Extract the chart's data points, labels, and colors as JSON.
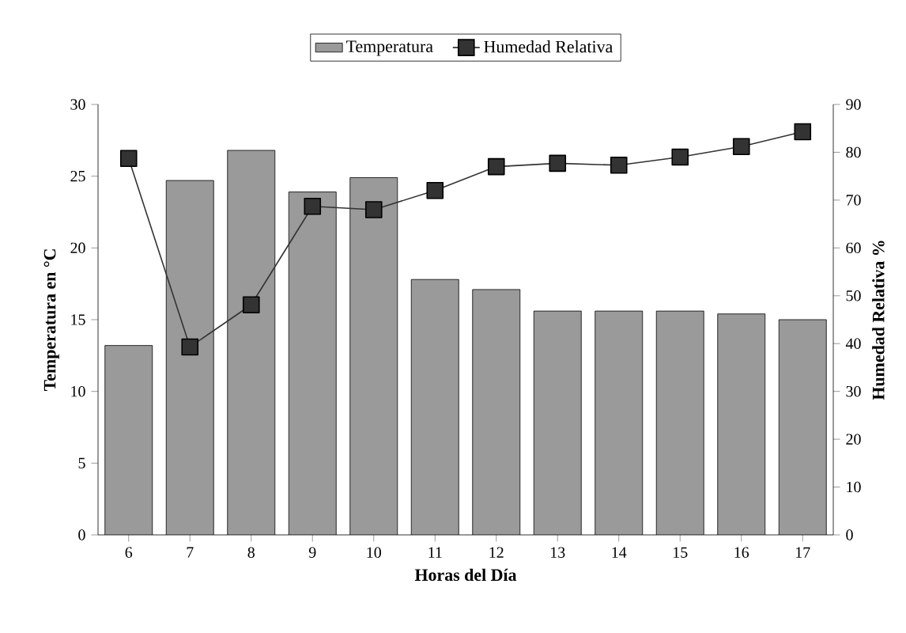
{
  "chart_data": {
    "type": "bar",
    "xlabel": "Horas del Día",
    "ylabel": "Temperatura en °C",
    "y2label": "Humedad Relativa %",
    "categories": [
      "6",
      "7",
      "8",
      "9",
      "10",
      "11",
      "12",
      "13",
      "14",
      "15",
      "16",
      "17"
    ],
    "series": [
      {
        "name": "Temperatura",
        "color": "#9a9a9a",
        "values": [
          13.2,
          24.7,
          26.8,
          23.9,
          24.9,
          17.8,
          17.1,
          15.6,
          15.6,
          15.6,
          15.4,
          15.0
        ]
      },
      {
        "name": "Humedad Relativa",
        "type": "line",
        "axis": "y2",
        "color": "#333333",
        "marker": "square",
        "values": [
          78.7,
          39.3,
          48.1,
          68.7,
          68.0,
          72.0,
          77.0,
          77.7,
          77.3,
          79.0,
          81.2,
          84.3
        ]
      }
    ],
    "ylim": [
      0,
      30
    ],
    "yticks": [
      0,
      5,
      10,
      15,
      20,
      25,
      30
    ],
    "y2lim": [
      0,
      90
    ],
    "y2ticks": [
      0,
      10,
      20,
      30,
      40,
      50,
      60,
      70,
      80,
      90
    ],
    "legend": "top",
    "grid": false
  }
}
